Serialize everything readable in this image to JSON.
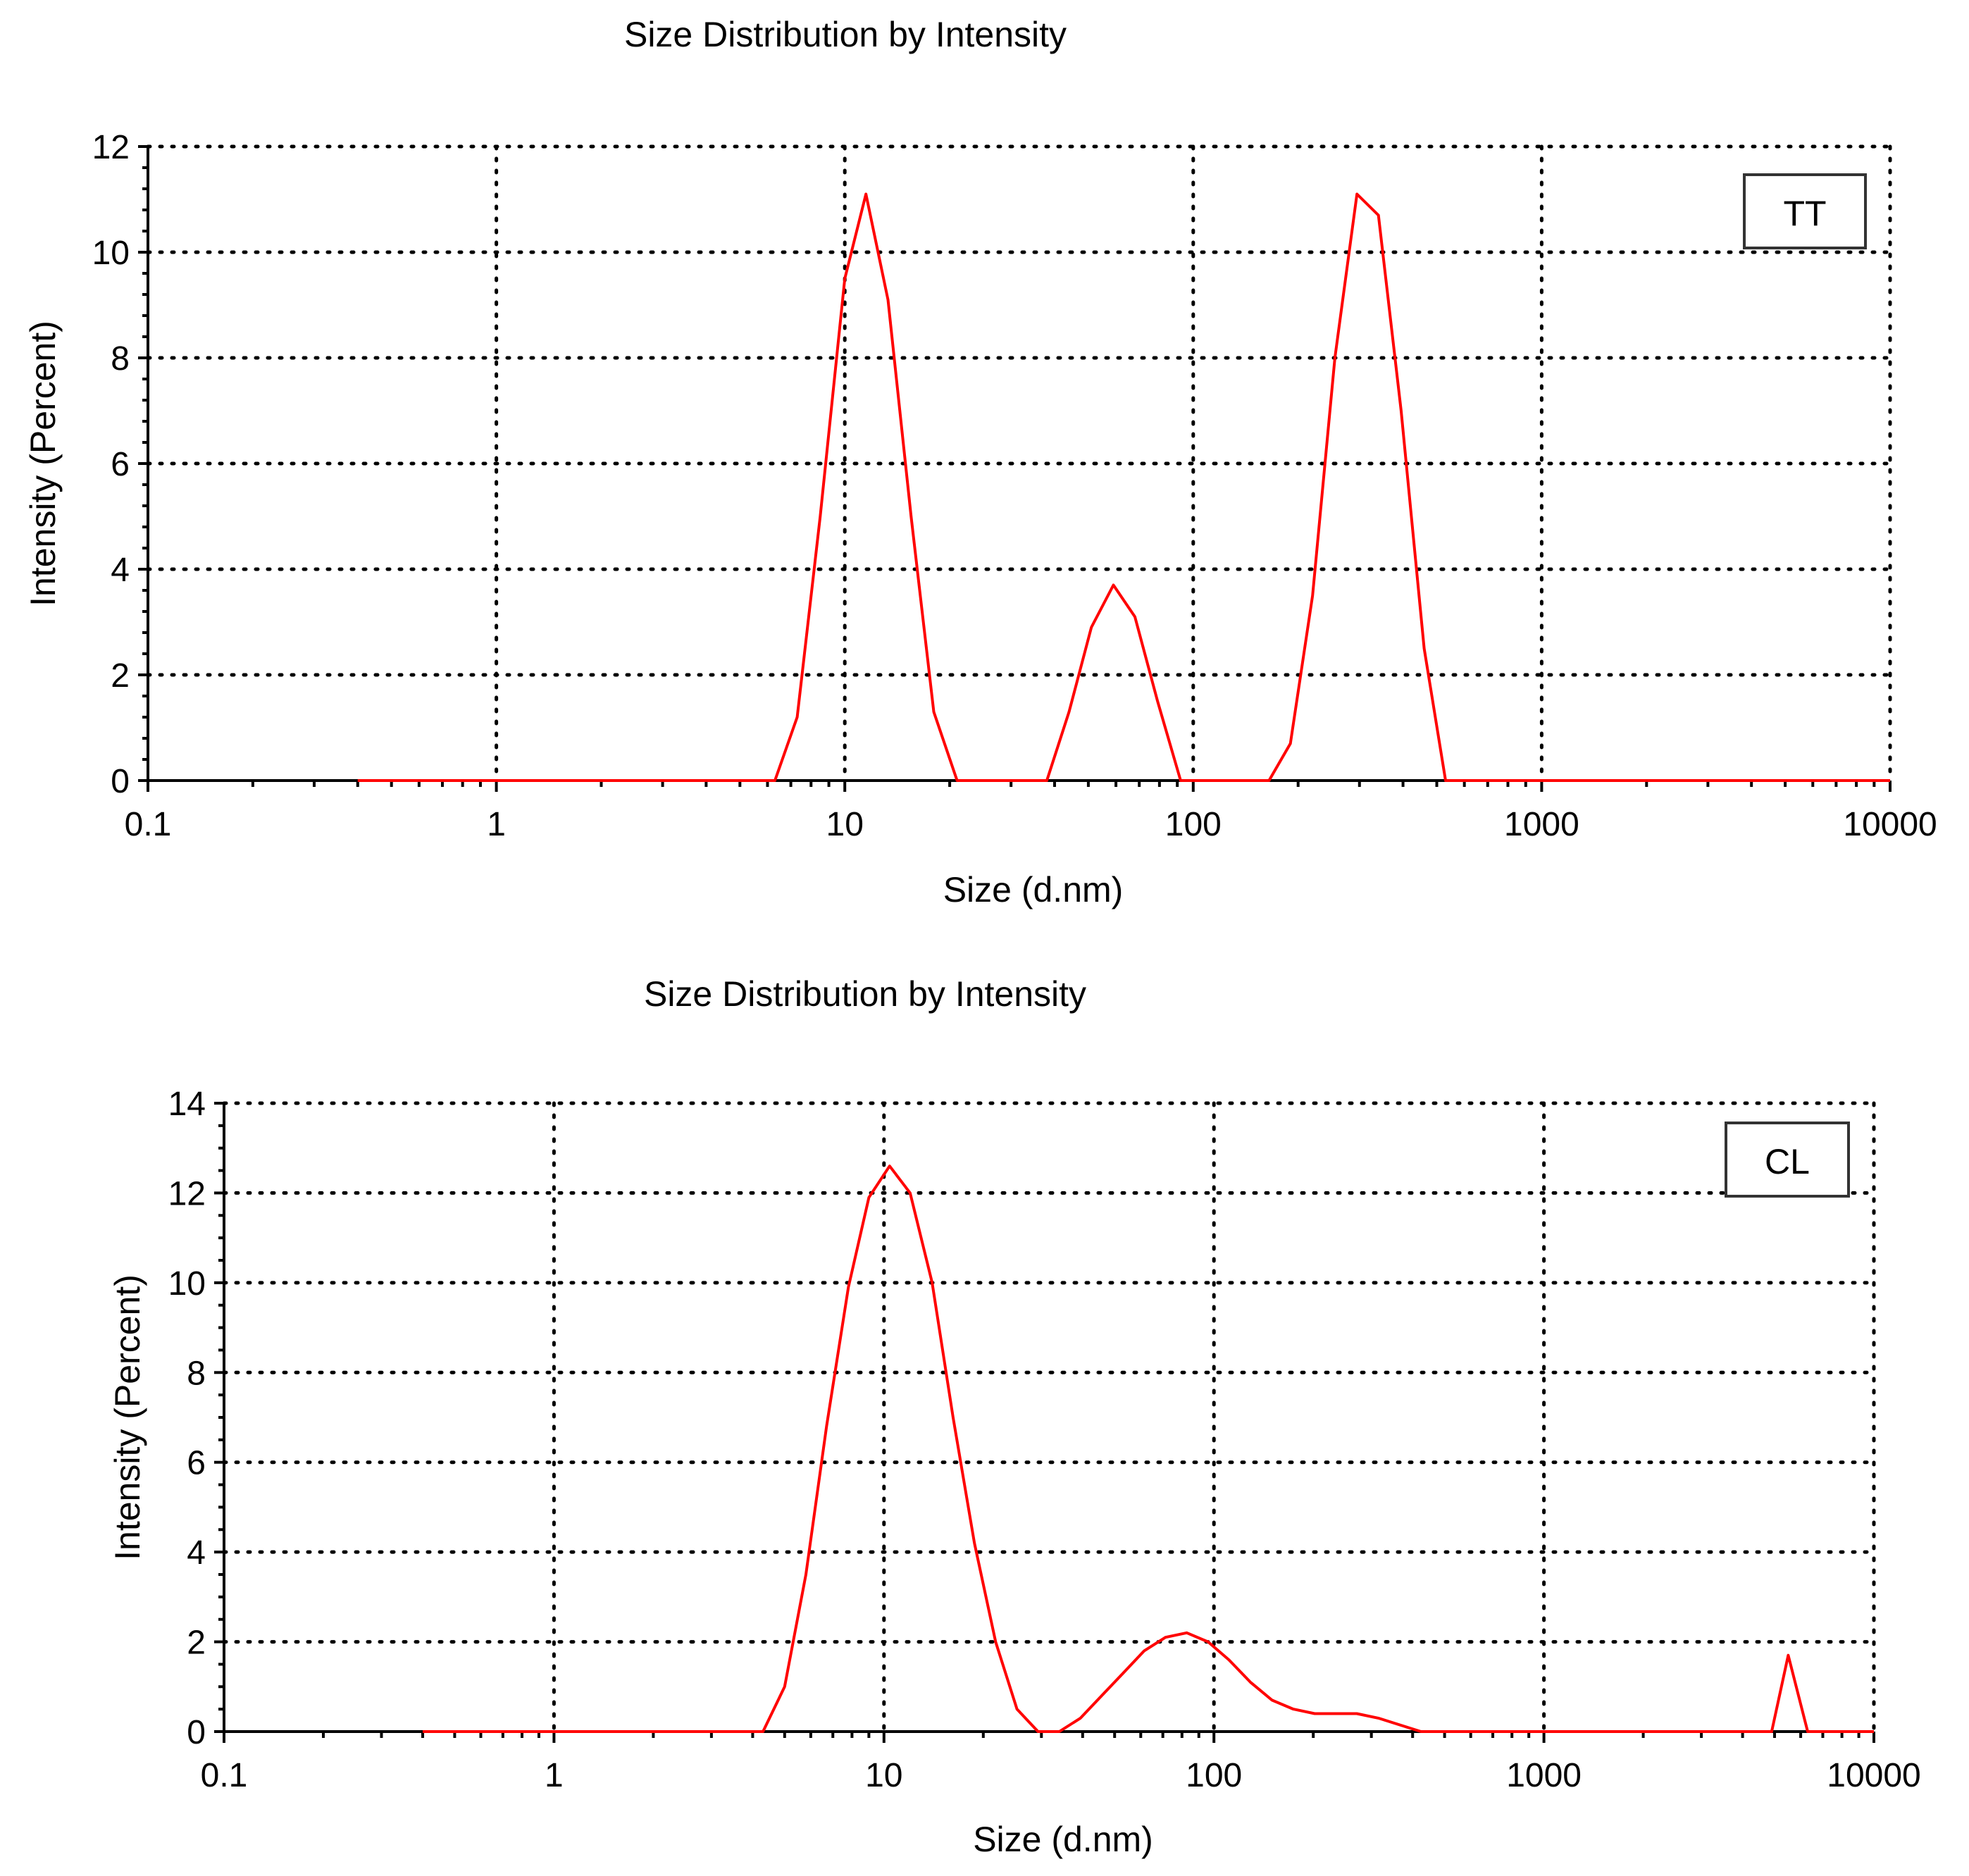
{
  "chart_data": [
    {
      "type": "line",
      "title": "Size Distribution by Intensity",
      "xlabel": "Size (d.nm)",
      "ylabel": "Intensity (Percent)",
      "xscale": "log",
      "xlim": [
        0.1,
        10000
      ],
      "ylim": [
        0,
        12
      ],
      "x_ticks": [
        0.1,
        1,
        10,
        100,
        1000,
        10000
      ],
      "x_tick_labels": [
        "0.1",
        "1",
        "10",
        "100",
        "1000",
        "10000"
      ],
      "y_ticks": [
        0,
        2,
        4,
        6,
        8,
        10,
        12
      ],
      "y_tick_labels": [
        "0",
        "2",
        "4",
        "6",
        "8",
        "10",
        "12"
      ],
      "grid": true,
      "legend_position": "top-right",
      "series": [
        {
          "name": "TT",
          "color": "#ff0000",
          "x": [
            0.4,
            6.3,
            7.3,
            8.5,
            10,
            11.5,
            13.3,
            15.5,
            18,
            21,
            38,
            44,
            51,
            59,
            68,
            79,
            92,
            106,
            165,
            190,
            220,
            255,
            295,
            340,
            395,
            460,
            530,
            10000
          ],
          "y": [
            0,
            0,
            1.2,
            5.0,
            9.5,
            11.1,
            9.1,
            5.0,
            1.3,
            0,
            0,
            1.3,
            2.9,
            3.7,
            3.1,
            1.5,
            0,
            0,
            0,
            0.7,
            3.5,
            8.0,
            11.1,
            10.7,
            7.0,
            2.5,
            0,
            0
          ]
        }
      ]
    },
    {
      "type": "line",
      "title": "Size Distribution by Intensity",
      "xlabel": "Size (d.nm)",
      "ylabel": "Intensity (Percent)",
      "xscale": "log",
      "xlim": [
        0.1,
        10000
      ],
      "ylim": [
        0,
        14
      ],
      "x_ticks": [
        0.1,
        1,
        10,
        100,
        1000,
        10000
      ],
      "x_tick_labels": [
        "0.1",
        "1",
        "10",
        "100",
        "1000",
        "10000"
      ],
      "y_ticks": [
        0,
        2,
        4,
        6,
        8,
        10,
        12,
        14
      ],
      "y_tick_labels": [
        "0",
        "2",
        "4",
        "6",
        "8",
        "10",
        "12",
        "14"
      ],
      "grid": true,
      "legend_position": "top-right",
      "series": [
        {
          "name": "CL",
          "color": "#ff0000",
          "x": [
            0.4,
            4.3,
            5.0,
            5.8,
            6.7,
            7.8,
            9.0,
            10.4,
            12.0,
            14.0,
            16.2,
            18.8,
            21.8,
            25.3,
            29.3,
            34.0,
            39.4,
            45.7,
            53.0,
            61.5,
            71.3,
            82.7,
            96.0,
            111,
            129,
            150,
            174,
            202,
            234,
            271,
            315,
            365,
            424,
            492,
            4900,
            5500,
            6300,
            10000
          ],
          "y": [
            0,
            0,
            1.0,
            3.5,
            6.8,
            9.9,
            11.9,
            12.6,
            12.0,
            10.0,
            7.0,
            4.2,
            2.0,
            0.5,
            0,
            0,
            0.3,
            0.8,
            1.3,
            1.8,
            2.1,
            2.2,
            2.0,
            1.6,
            1.1,
            0.7,
            0.5,
            0.4,
            0.4,
            0.4,
            0.3,
            0.15,
            0,
            0,
            0,
            1.7,
            0,
            0
          ]
        }
      ]
    }
  ]
}
